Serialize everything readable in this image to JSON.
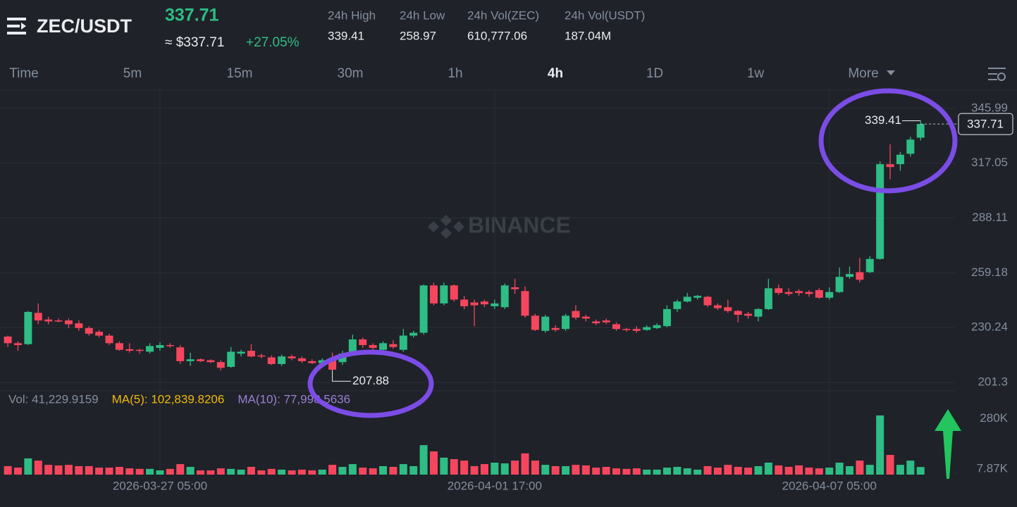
{
  "header": {
    "pair": "ZEC/USDT",
    "price": "337.71",
    "approx": "≈ $337.71",
    "change": "+27.05%",
    "stats": [
      {
        "label": "24h High",
        "value": "339.41"
      },
      {
        "label": "24h Low",
        "value": "258.97"
      },
      {
        "label": "24h Vol(ZEC)",
        "value": "610,777.06"
      },
      {
        "label": "24h Vol(USDT)",
        "value": "187.04M"
      }
    ]
  },
  "tabs": [
    "Time",
    "5m",
    "15m",
    "30m",
    "1h",
    "4h",
    "1D",
    "1w",
    "More"
  ],
  "active_tab": 5,
  "chart_data": [
    {
      "type": "candlestick",
      "watermark": "BINANCE",
      "up_color": "#2ebd85",
      "down_color": "#f6465d",
      "categories": [
        null,
        null,
        null,
        null,
        null,
        null,
        null,
        null,
        null,
        null,
        null,
        null,
        null,
        null,
        null,
        "2026-03-27 05:00",
        null,
        null,
        null,
        null,
        null,
        null,
        null,
        null,
        null,
        null,
        null,
        null,
        null,
        null,
        null,
        null,
        null,
        null,
        null,
        null,
        null,
        null,
        null,
        null,
        null,
        null,
        null,
        null,
        null,
        null,
        null,
        null,
        "2026-04-01 17:00",
        null,
        null,
        null,
        null,
        null,
        null,
        null,
        null,
        null,
        null,
        null,
        null,
        null,
        null,
        null,
        null,
        null,
        null,
        null,
        null,
        null,
        null,
        null,
        null,
        null,
        null,
        null,
        null,
        null,
        null,
        null,
        null,
        "2026-04-07 05:00",
        null,
        null,
        null,
        null,
        null,
        null,
        null,
        null,
        null
      ],
      "open": [
        225.5,
        222,
        221.5,
        238,
        234.5,
        234,
        234,
        232.5,
        230,
        228,
        226,
        222,
        218.8,
        218.5,
        217.5,
        219.5,
        221,
        219.8,
        212.5,
        213.5,
        213,
        212,
        209.5,
        216.5,
        218,
        215.5,
        214.5,
        211,
        215,
        214,
        212.5,
        211.5,
        213,
        212,
        216.5,
        224,
        221,
        218.5,
        221.5,
        218.5,
        226,
        227.5,
        252.5,
        243,
        252.5,
        245,
        243.5,
        244,
        241.5,
        241,
        251.5,
        249.5,
        236.5,
        228.5,
        230,
        229.5,
        239,
        236,
        233.5,
        234,
        232,
        229.5,
        229.5,
        229,
        230,
        231,
        240,
        244,
        246,
        246.5,
        242,
        241,
        239,
        237.5,
        236,
        240,
        251,
        249,
        249.5,
        249,
        250,
        246,
        249,
        257,
        259.5,
        259.5,
        266.5,
        316.5,
        316.5,
        322,
        330.5
      ],
      "high": [
        226,
        223,
        239,
        243,
        236,
        235,
        235,
        234,
        231,
        229,
        227,
        223,
        222,
        219,
        222,
        222.5,
        222,
        221,
        217,
        214,
        213.5,
        213,
        220,
        218.5,
        221.5,
        216.5,
        215.5,
        216,
        216,
        215,
        213.5,
        214,
        217,
        218,
        226.5,
        225,
        222,
        223,
        223.5,
        229.5,
        228.5,
        253,
        254,
        254,
        253,
        247,
        245,
        245,
        245,
        253.5,
        256,
        252,
        237.5,
        237,
        231.5,
        237.5,
        242,
        237,
        234.5,
        235,
        233,
        230,
        231,
        231.5,
        232.5,
        242,
        245,
        248.5,
        247.5,
        247,
        243,
        245,
        239.5,
        238.5,
        240.5,
        256,
        253,
        251,
        250.5,
        250,
        251,
        251.5,
        262,
        262.5,
        267,
        268,
        318,
        327,
        323,
        331,
        339.41
      ],
      "low": [
        220,
        218,
        221,
        232,
        232,
        233,
        230,
        228.5,
        226,
        225,
        221,
        218,
        217,
        216.5,
        216.5,
        218,
        219.5,
        211,
        210,
        212,
        211.5,
        207.5,
        209,
        215,
        214.5,
        214,
        210.5,
        210,
        213,
        211.5,
        211,
        210.5,
        207.88,
        210.5,
        215.5,
        219.5,
        218,
        217,
        219,
        217.5,
        225,
        226.5,
        242,
        242,
        244,
        240,
        231,
        241,
        240,
        240,
        248,
        235.5,
        228.5,
        227.5,
        228,
        228.5,
        234.5,
        233.5,
        231.5,
        232,
        228.5,
        228,
        227.5,
        228.5,
        229.5,
        230.5,
        238.5,
        243.5,
        245,
        241,
        239.5,
        238,
        233,
        235,
        233.5,
        239.5,
        247.5,
        247,
        247,
        246.5,
        245.5,
        245,
        248.5,
        256,
        254,
        259,
        266,
        308.5,
        313,
        320.5,
        329
      ],
      "close": [
        222,
        221,
        238.5,
        234,
        233.5,
        233.5,
        232,
        230,
        227,
        226,
        222,
        218.5,
        218,
        218,
        220.5,
        221,
        220.5,
        212.5,
        213.5,
        212.5,
        212,
        209,
        217.5,
        217.5,
        215,
        215,
        211,
        215,
        214,
        212.5,
        211.5,
        213,
        208,
        216.5,
        224,
        221,
        219.5,
        222,
        220,
        226,
        227.5,
        252.5,
        243,
        252.5,
        245,
        241.5,
        242,
        242.5,
        243,
        252.5,
        250.5,
        236.5,
        229,
        236,
        229,
        236.5,
        235.5,
        235,
        232.5,
        233,
        229.5,
        229,
        228.5,
        230.5,
        231.5,
        240,
        244,
        246.5,
        247,
        242,
        240.5,
        239,
        237,
        236.5,
        240,
        251,
        248.5,
        248,
        248.5,
        248,
        246,
        249,
        257,
        258.5,
        255.5,
        266.5,
        316.5,
        315,
        321.5,
        329.5,
        337.71
      ],
      "ylim": [
        196.85,
        355.6
      ],
      "yticks": [
        201.3,
        230.24,
        259.18,
        288.11,
        317.05,
        345.99
      ],
      "high_label": 339.41,
      "low_label": 207.88,
      "last_price": 337.71
    },
    {
      "type": "bar",
      "legend": [
        "Vol: 41,229.9159",
        "MA(5): 102,839.8206",
        "MA(10): 77,998.5636"
      ],
      "legend_colors": [
        "#848e9c",
        "#f0b90b",
        "#9b7fd4"
      ],
      "values": [
        46000,
        38000,
        88000,
        76000,
        53000,
        50000,
        53000,
        46000,
        46000,
        38000,
        38000,
        42000,
        34000,
        31000,
        31000,
        23000,
        31000,
        57000,
        42000,
        23000,
        23000,
        34000,
        31000,
        27000,
        42000,
        23000,
        31000,
        27000,
        23000,
        27000,
        23000,
        27000,
        53000,
        42000,
        57000,
        38000,
        34000,
        46000,
        42000,
        57000,
        46000,
        160000,
        126000,
        92000,
        84000,
        76000,
        46000,
        57000,
        65000,
        61000,
        76000,
        115000,
        76000,
        53000,
        46000,
        46000,
        53000,
        50000,
        38000,
        42000,
        34000,
        31000,
        34000,
        27000,
        27000,
        38000,
        42000,
        34000,
        27000,
        46000,
        38000,
        53000,
        42000,
        38000,
        46000,
        65000,
        50000,
        42000,
        50000,
        38000,
        34000,
        38000,
        65000,
        46000,
        76000,
        53000,
        321000,
        107000,
        53000,
        76000,
        41229.9159
      ],
      "ylim": [
        0,
        340000
      ],
      "yticks": [
        {
          "value": 280000,
          "label": "280K"
        },
        {
          "value": 7870,
          "label": "7.87K"
        }
      ]
    }
  ]
}
